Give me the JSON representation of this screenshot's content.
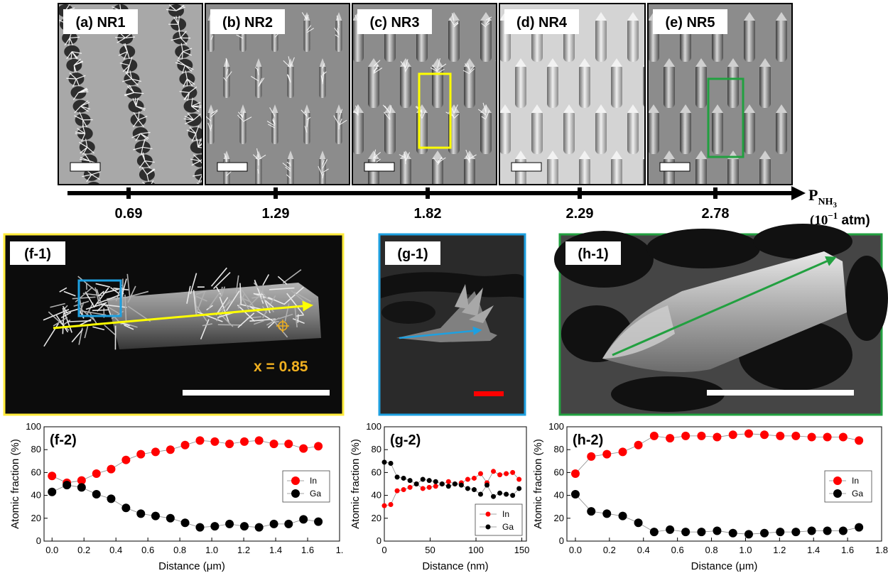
{
  "colors": {
    "in_series": "#ff0000",
    "ga_series": "#000000",
    "frame_f": "#ffeb3b",
    "frame_g": "#1ea0e0",
    "frame_h": "#22a040",
    "arrow_f": "#ffff00",
    "arrow_g": "#1ea0e0",
    "arrow_h": "#22a040",
    "annotation": "#f0b020",
    "scalebar_g": "#ff0000"
  },
  "top_panels": [
    {
      "label": "(a) NR1",
      "texture": "dendritic-rows",
      "marker": null
    },
    {
      "label": "(b) NR2",
      "texture": "spiky-rods",
      "marker": null
    },
    {
      "label": "(c) NR3",
      "texture": "rods-spiky-tops",
      "marker": "yellow-rectangle"
    },
    {
      "label": "(d) NR4",
      "texture": "smooth-rods-light",
      "marker": null
    },
    {
      "label": "(e) NR5",
      "texture": "smooth-rods",
      "marker": "green-rectangle"
    }
  ],
  "pressure_axis": {
    "ticks": [
      "0.69",
      "1.29",
      "1.82",
      "2.29",
      "2.78"
    ],
    "label_main": "P",
    "label_sub": "NH",
    "label_sub2": "3",
    "unit_a": "(10",
    "unit_exp": "−1",
    "unit_b": " atm)"
  },
  "micrographs": {
    "f1": {
      "label": "(f-1)",
      "annotation": "x = 0.85"
    },
    "g1": {
      "label": "(g-1)"
    },
    "h1": {
      "label": "(h-1)"
    }
  },
  "chart_data": [
    {
      "type": "line",
      "panel_label": "(f-2)",
      "xlabel": "Distance (μm)",
      "ylabel": "Atomic fraction (%)",
      "xlim": [
        -0.05,
        1.8
      ],
      "ylim": [
        0,
        100
      ],
      "xticks": [
        0.0,
        0.2,
        0.4,
        0.6,
        0.8,
        1.0,
        1.2,
        1.4,
        1.6
      ],
      "xtick_labels": [
        "0.0",
        "0.2",
        "0.4",
        "0.6",
        "0.8",
        "1.0",
        "1.2",
        "1.4",
        "1.6",
        "1."
      ],
      "xtick_label_last_pos": 1.8,
      "yticks": [
        0,
        20,
        40,
        60,
        80,
        100
      ],
      "marker_size": "large",
      "legend_position": "right",
      "x": [
        0.0,
        0.093,
        0.185,
        0.278,
        0.37,
        0.463,
        0.556,
        0.648,
        0.741,
        0.833,
        0.926,
        1.019,
        1.111,
        1.204,
        1.296,
        1.389,
        1.481,
        1.574,
        1.667
      ],
      "series": [
        {
          "name": "In",
          "color": "#ff0000",
          "values": [
            57,
            51,
            53,
            59,
            63,
            71,
            76,
            78,
            80,
            84,
            88,
            87,
            85,
            87,
            88,
            85,
            85,
            81,
            83
          ]
        },
        {
          "name": "Ga",
          "color": "#000000",
          "values": [
            43,
            49,
            47,
            41,
            37,
            29,
            24,
            22,
            20,
            16,
            12,
            13,
            15,
            13,
            12,
            15,
            15,
            19,
            17
          ]
        }
      ]
    },
    {
      "type": "line",
      "panel_label": "(g-2)",
      "xlabel": "Distance (nm)",
      "ylabel": "Atomic fraction (%)",
      "xlim": [
        0,
        155
      ],
      "ylim": [
        0,
        100
      ],
      "xticks": [
        0,
        50,
        100,
        150
      ],
      "xtick_labels": [
        "0",
        "50",
        "100",
        "150"
      ],
      "yticks": [
        0,
        20,
        40,
        60,
        80,
        100
      ],
      "marker_size": "small",
      "legend_position": "bottom-right",
      "x": [
        0,
        7,
        14,
        21,
        28,
        35,
        42,
        49,
        56,
        63,
        70,
        77,
        84,
        91,
        98,
        105,
        112,
        119,
        126,
        133,
        140,
        147
      ],
      "series": [
        {
          "name": "In",
          "color": "#ff0000",
          "values": [
            31,
            32,
            44,
            45,
            47,
            50,
            46,
            47,
            48,
            50,
            52,
            50,
            51,
            54,
            55,
            59,
            51,
            61,
            58,
            59,
            60,
            54
          ]
        },
        {
          "name": "Ga",
          "color": "#000000",
          "values": [
            69,
            68,
            56,
            55,
            53,
            50,
            54,
            53,
            52,
            50,
            48,
            50,
            49,
            46,
            45,
            41,
            49,
            39,
            42,
            41,
            40,
            46
          ]
        }
      ]
    },
    {
      "type": "line",
      "panel_label": "(h-2)",
      "xlabel": "Distance (μm)",
      "ylabel": "Atomic fraction (%)",
      "xlim": [
        -0.05,
        1.8
      ],
      "ylim": [
        0,
        100
      ],
      "xticks": [
        0.0,
        0.2,
        0.4,
        0.6,
        0.8,
        1.0,
        1.2,
        1.4,
        1.6,
        1.8
      ],
      "xtick_labels": [
        "0.0",
        "0.2",
        "0.4",
        "0.6",
        "0.8",
        "1.0",
        "1.2",
        "1.4",
        "1.6",
        "1.8"
      ],
      "yticks": [
        0,
        20,
        40,
        60,
        80,
        100
      ],
      "marker_size": "large",
      "legend_position": "right",
      "x": [
        0.0,
        0.093,
        0.185,
        0.278,
        0.37,
        0.463,
        0.556,
        0.648,
        0.741,
        0.833,
        0.926,
        1.019,
        1.111,
        1.204,
        1.296,
        1.389,
        1.481,
        1.574,
        1.667
      ],
      "series": [
        {
          "name": "In",
          "color": "#ff0000",
          "values": [
            59,
            74,
            76,
            78,
            84,
            92,
            90,
            92,
            92,
            91,
            93,
            94,
            93,
            92,
            92,
            91,
            91,
            91,
            88
          ]
        },
        {
          "name": "Ga",
          "color": "#000000",
          "values": [
            41,
            26,
            24,
            22,
            16,
            8,
            10,
            8,
            8,
            9,
            7,
            6,
            7,
            8,
            8,
            9,
            9,
            9,
            12
          ]
        }
      ]
    }
  ]
}
